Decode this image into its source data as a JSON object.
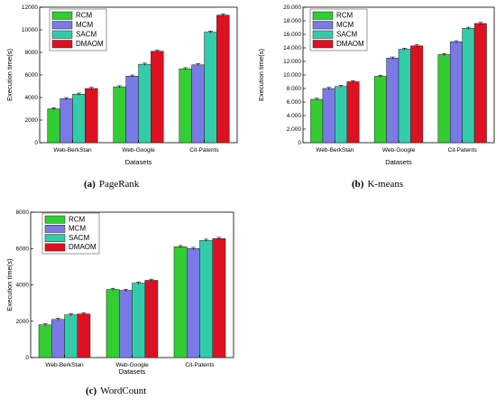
{
  "series_colors": [
    "#33cc33",
    "#7a7ae6",
    "#33ccaa",
    "#dd1122"
  ],
  "chart_data": [
    {
      "type": "bar",
      "caption_letter": "(a)",
      "caption_text": "PageRank",
      "xlabel": "Datasets",
      "ylabel": "Execution time(s)",
      "categories": [
        "Web-BerkStan",
        "Web-Google",
        "Cit-Patents"
      ],
      "ylim": [
        0,
        12000
      ],
      "yticks": [
        "0",
        "2000",
        "4000",
        "6000",
        "8000",
        "10000",
        "12000"
      ],
      "legend_position": "top-left",
      "grid": false,
      "error_bars": true,
      "series": [
        {
          "name": "RCM",
          "values": [
            3000,
            4950,
            6550
          ]
        },
        {
          "name": "MCM",
          "values": [
            3900,
            5900,
            6900
          ]
        },
        {
          "name": "SACM",
          "values": [
            4300,
            6950,
            9800
          ]
        },
        {
          "name": "DMAOM",
          "values": [
            4800,
            8100,
            11300
          ]
        }
      ]
    },
    {
      "type": "bar",
      "caption_letter": "(b)",
      "caption_text": "K-means",
      "xlabel": "Datasets",
      "ylabel": "Execution time(s)",
      "categories": [
        "Web-BerkStan",
        "Web-Google",
        "Cit-Patents"
      ],
      "ylim": [
        0,
        20000
      ],
      "yticks": [
        "0",
        "2.000",
        "4.000",
        "6.000",
        "8.000",
        "10.000",
        "12.000",
        "14.000",
        "16.000",
        "18.000",
        "20.000"
      ],
      "legend_position": "top-left",
      "grid": false,
      "error_bars": true,
      "series": [
        {
          "name": "RCM",
          "values": [
            6400,
            9800,
            13000
          ]
        },
        {
          "name": "MCM",
          "values": [
            8000,
            12500,
            14900
          ]
        },
        {
          "name": "SACM",
          "values": [
            8300,
            13800,
            16900
          ]
        },
        {
          "name": "DMAOM",
          "values": [
            9000,
            14300,
            17600
          ]
        }
      ]
    },
    {
      "type": "bar",
      "caption_letter": "(c)",
      "caption_text": "WordCount",
      "xlabel": "Datasets",
      "ylabel": "Execution time(s)",
      "categories": [
        "Web-BerkStan",
        "Web-Google",
        "Cit-Patents"
      ],
      "ylim": [
        0,
        8000
      ],
      "yticks": [
        "0",
        "2000",
        "4000",
        "6000",
        "8000"
      ],
      "legend_position": "top-left",
      "grid": false,
      "error_bars": true,
      "series": [
        {
          "name": "RCM",
          "values": [
            1800,
            3750,
            6100
          ]
        },
        {
          "name": "MCM",
          "values": [
            2100,
            3700,
            6000
          ]
        },
        {
          "name": "SACM",
          "values": [
            2350,
            4100,
            6450
          ]
        },
        {
          "name": "DMAOM",
          "values": [
            2400,
            4250,
            6550
          ]
        }
      ]
    }
  ]
}
